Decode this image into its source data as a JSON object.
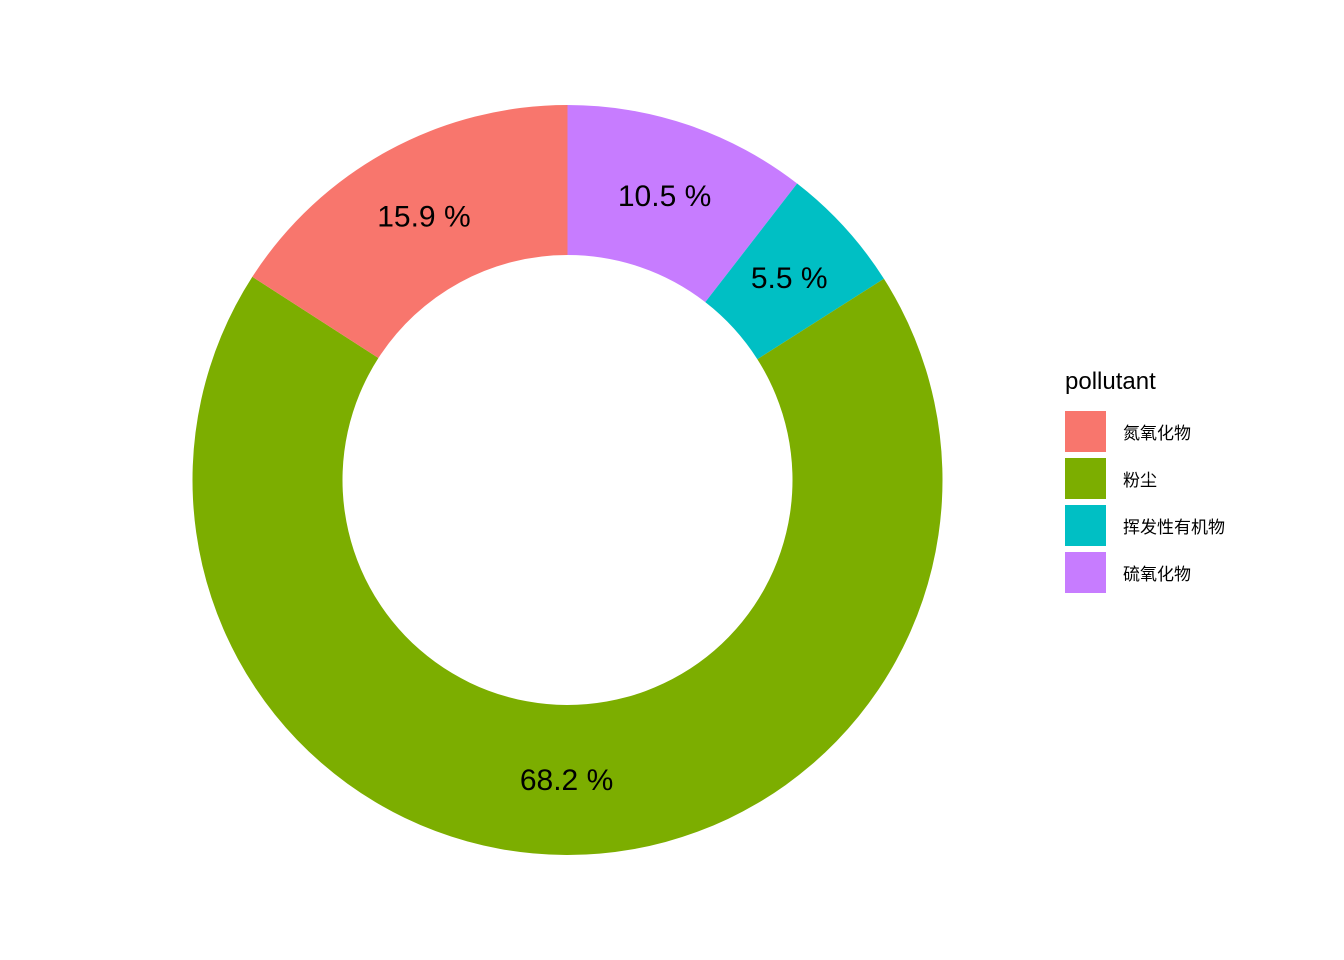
{
  "chart_data": {
    "type": "pie",
    "subtype": "donut",
    "title": "",
    "legend_title": "pollutant",
    "legend_position": "right",
    "start_angle_deg": 0,
    "direction": "clockwise",
    "background_color": "#ffffff",
    "label_color": "#000000",
    "series": [
      {
        "key": "sulfur-oxides",
        "name": "硫氧化物",
        "value": 10.5,
        "label": "10.5 %",
        "color": "#C77CFF"
      },
      {
        "key": "volatile-organic-compounds",
        "name": "挥发性有机物",
        "value": 5.5,
        "label": "5.5 %",
        "color": "#00BFC4"
      },
      {
        "key": "dust",
        "name": "粉尘",
        "value": 68.2,
        "label": "68.2 %",
        "color": "#7CAE00"
      },
      {
        "key": "nitrogen-oxides",
        "name": "氮氧化物",
        "value": 15.9,
        "label": "15.9 %",
        "color": "#F8766D"
      }
    ],
    "legend_items": [
      {
        "key": "nitrogen-oxides",
        "label": "氮氧化物",
        "color": "#F8766D"
      },
      {
        "key": "dust",
        "label": "粉尘",
        "color": "#7CAE00"
      },
      {
        "key": "volatile-organic-compounds",
        "label": "挥发性有机物",
        "color": "#00BFC4"
      },
      {
        "key": "sulfur-oxides",
        "label": "硫氧化物",
        "color": "#C77CFF"
      }
    ]
  }
}
